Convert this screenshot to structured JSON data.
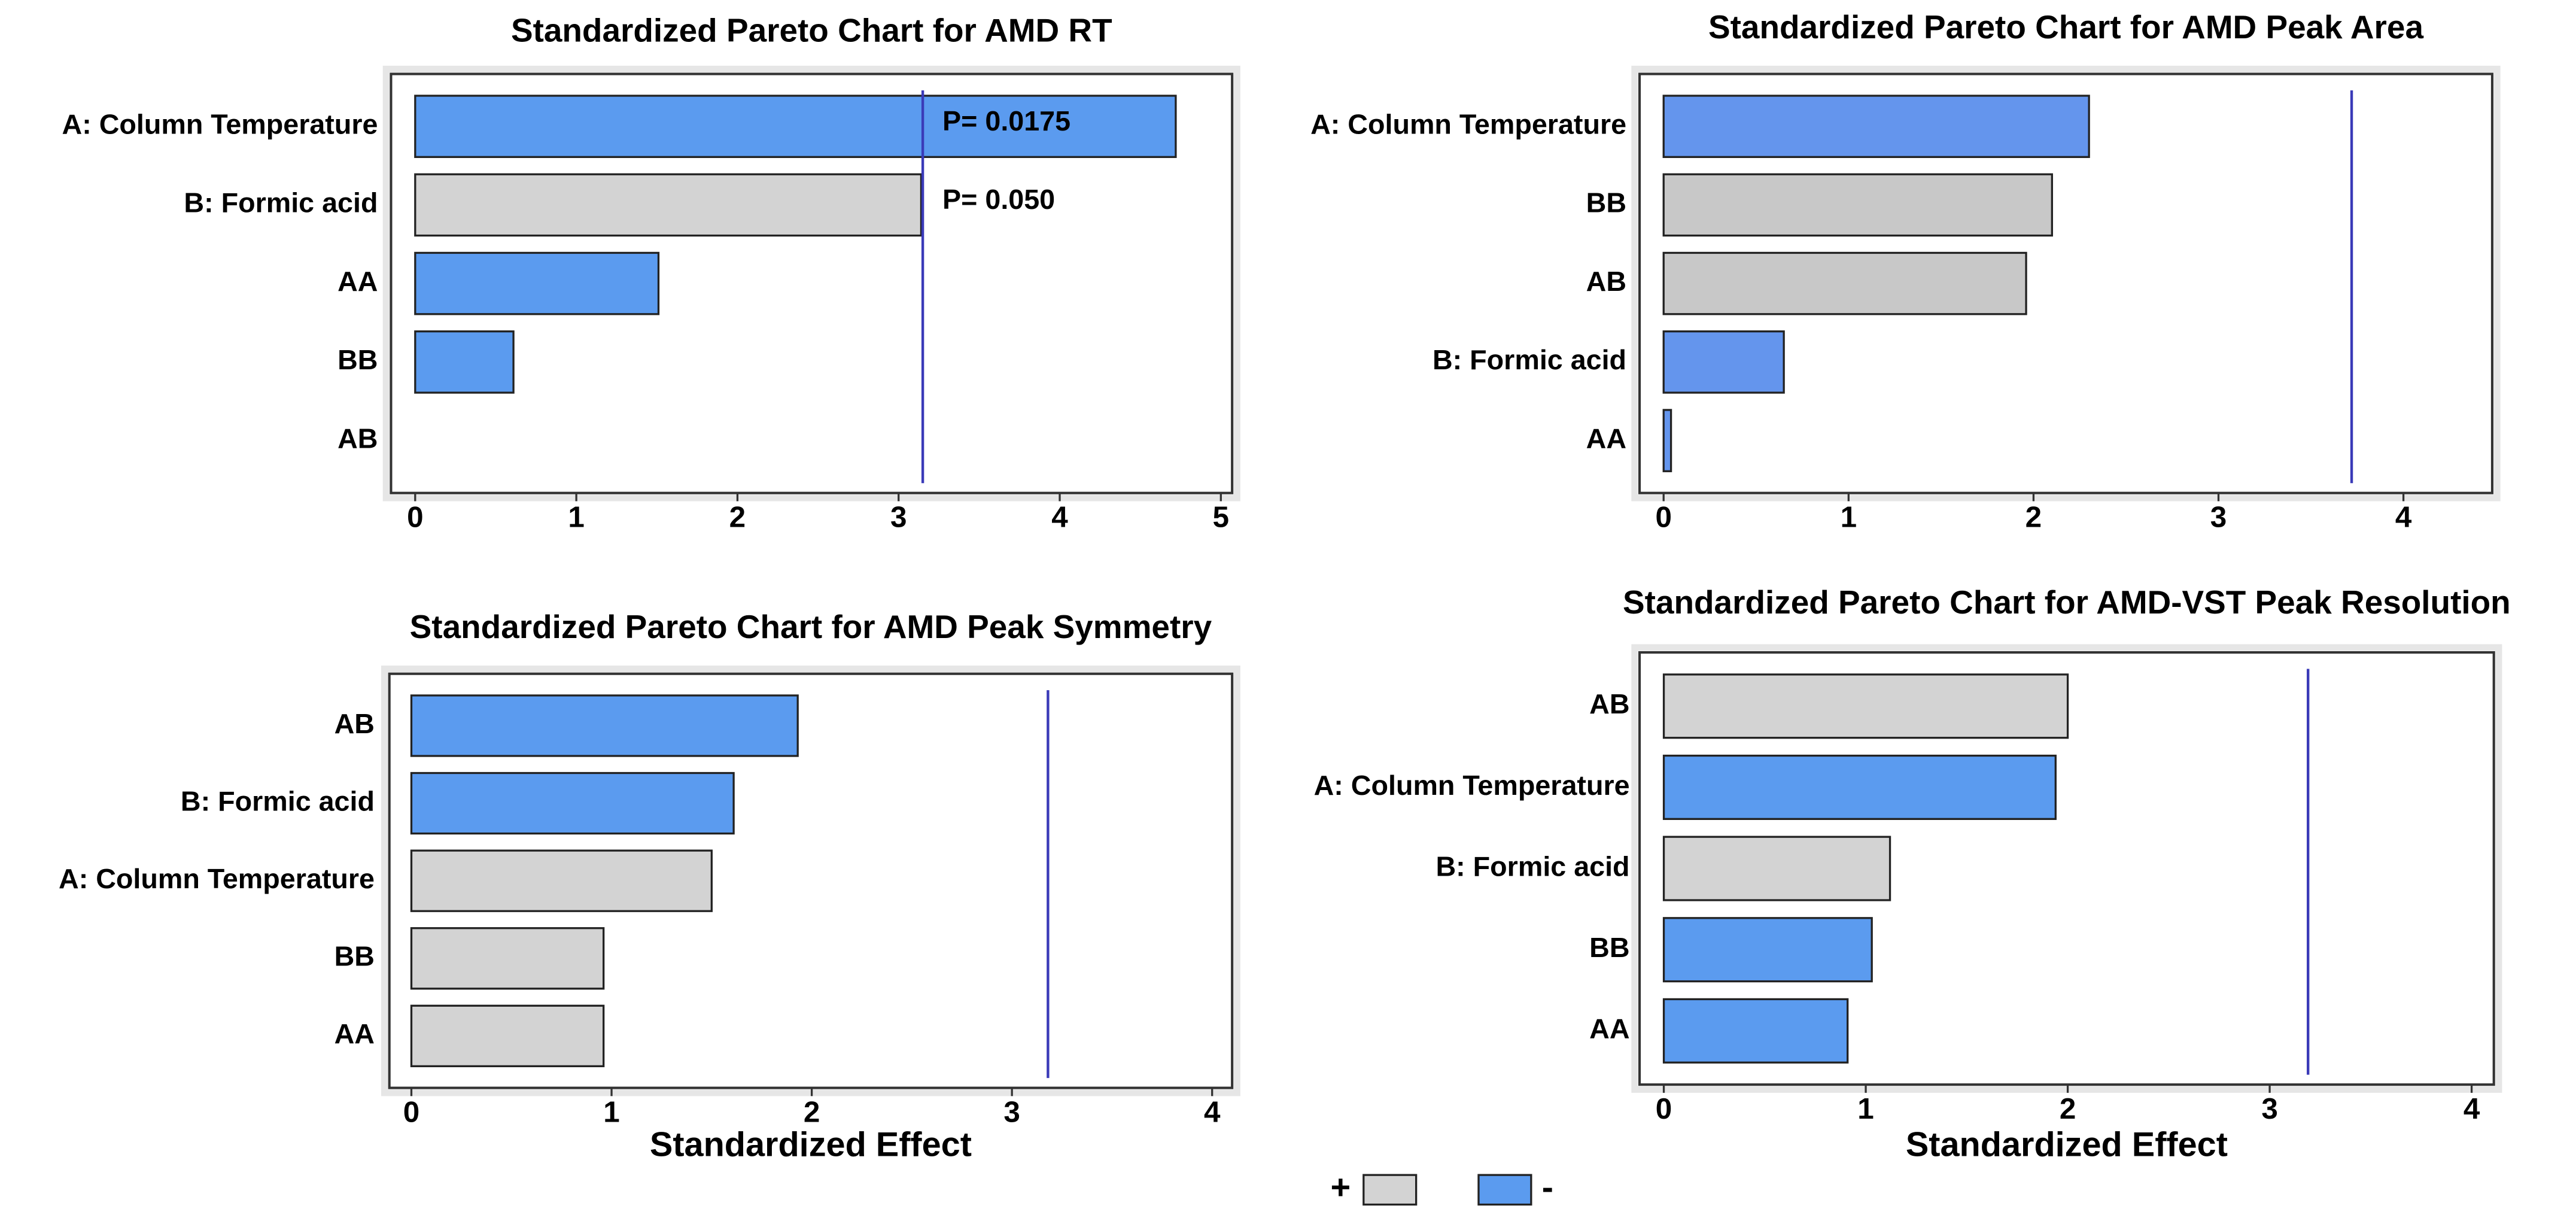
{
  "chart_data": [
    {
      "type": "hbar",
      "title": "Standardized Pareto Chart for AMD RT",
      "categories": [
        "A: Column Temperature",
        "B: Formic acid",
        "AA",
        "BB",
        "AB"
      ],
      "values": [
        4.72,
        3.14,
        1.51,
        0.61,
        0
      ],
      "colors": [
        "#5b9bef",
        "#d3d3d3",
        "#5b9bef",
        "#5b9bef",
        "#5b9bef"
      ],
      "xlim": [
        -0.15,
        5.07
      ],
      "xticks": [
        0,
        1,
        2,
        3,
        4,
        5
      ],
      "refline": 3.15,
      "annotations": [
        "P= 0.0175",
        "P= 0.050"
      ]
    },
    {
      "type": "hbar",
      "title": "Standardized Pareto Chart for AMD Peak Area",
      "categories": [
        "A: Column Temperature",
        "BB",
        "AB",
        "B: Formic acid",
        "AA"
      ],
      "values": [
        2.3,
        2.1,
        1.96,
        0.65,
        0.04
      ],
      "colors": [
        "#6495ed",
        "#c8c8c8",
        "#c8c8c8",
        "#6495ed",
        "#6495ed"
      ],
      "xlim": [
        -0.13,
        4.48
      ],
      "xticks": [
        0,
        1,
        2,
        3,
        4
      ],
      "refline": 3.72
    },
    {
      "type": "hbar",
      "title": "Standardized Pareto Chart for AMD Peak Symmetry",
      "categories": [
        "AB",
        "B: Formic acid",
        "A: Column Temperature",
        "BB",
        "AA"
      ],
      "values": [
        1.93,
        1.61,
        1.5,
        0.96,
        0.96
      ],
      "colors": [
        "#5b9bef",
        "#5b9bef",
        "#d3d3d3",
        "#d3d3d3",
        "#d3d3d3"
      ],
      "xlim": [
        -0.11,
        4.1
      ],
      "xticks": [
        0,
        1,
        2,
        3,
        4
      ],
      "refline": 3.18,
      "xlabel": "Standardized Effect"
    },
    {
      "type": "hbar",
      "title": "Standardized Pareto Chart for AMD-VST Peak Resolution",
      "categories": [
        "AB",
        "A: Column Temperature",
        "B: Formic acid",
        "BB",
        "AA"
      ],
      "values": [
        2.0,
        1.94,
        1.12,
        1.03,
        0.91
      ],
      "colors": [
        "#d3d3d3",
        "#5b9bef",
        "#d3d3d3",
        "#5b9bef",
        "#5b9bef"
      ],
      "xlim": [
        -0.12,
        4.11
      ],
      "xticks": [
        0,
        1,
        2,
        3,
        4
      ],
      "refline": 3.19,
      "xlabel": "Standardized Effect"
    }
  ],
  "legend": {
    "items": [
      {
        "label": "+",
        "color": "#d3d3d3"
      },
      {
        "label": "-",
        "color": "#5b9bef"
      }
    ]
  }
}
